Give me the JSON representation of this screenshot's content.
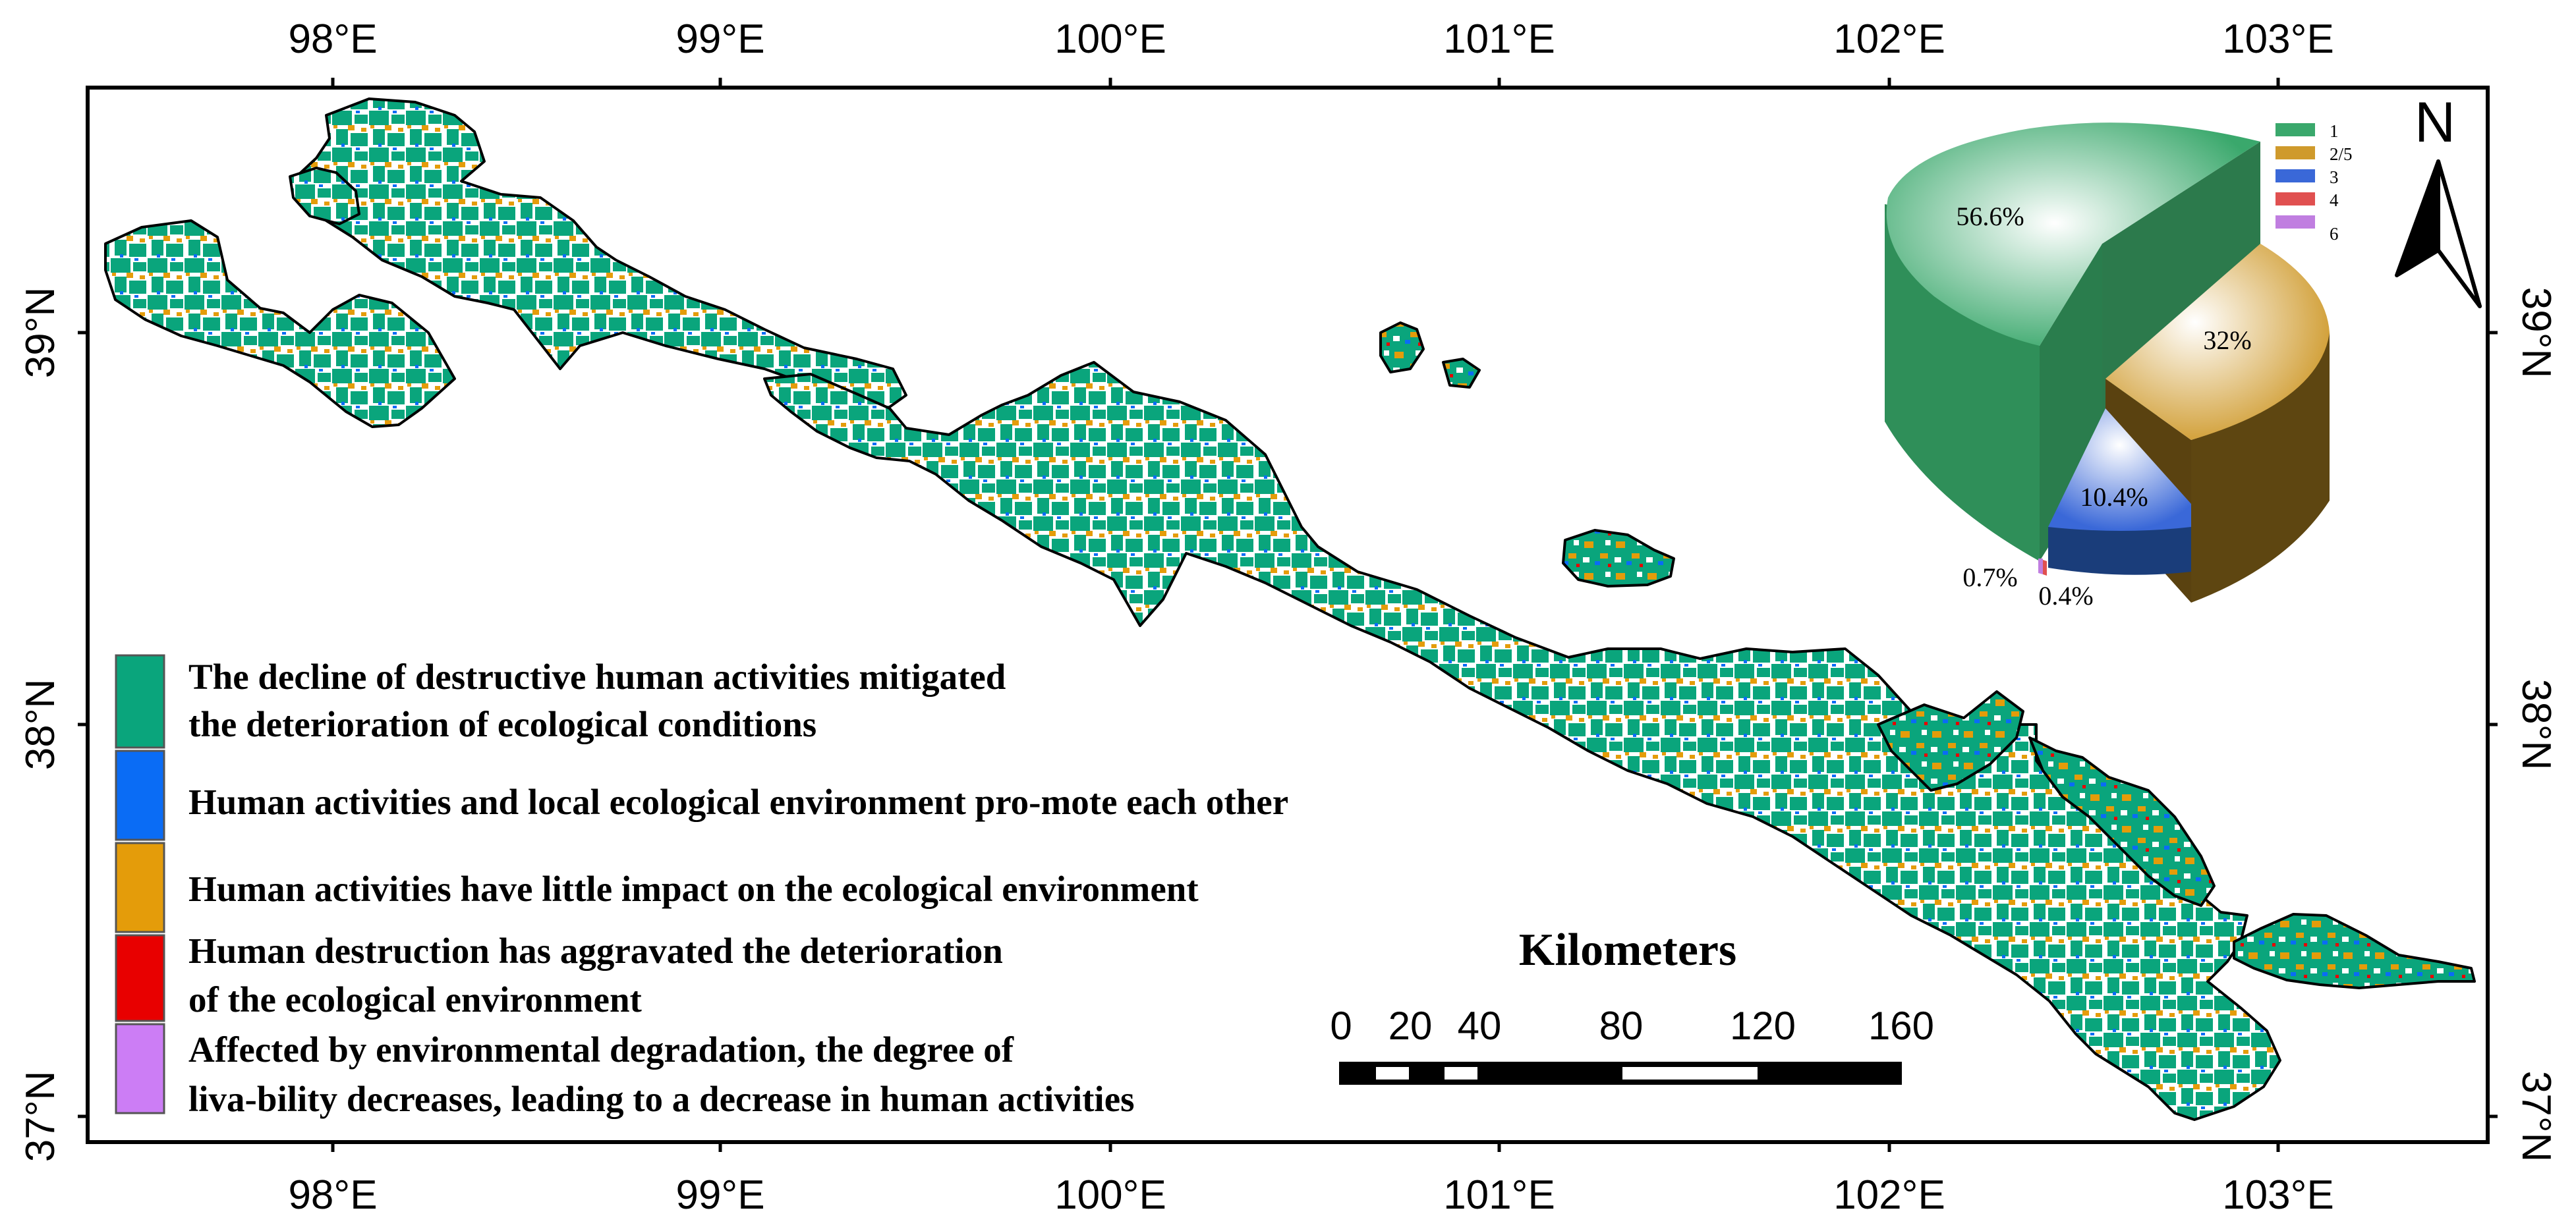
{
  "map": {
    "lon_labels": [
      "98°E",
      "99°E",
      "100°E",
      "101°E",
      "102°E",
      "103°E"
    ],
    "lat_labels": [
      "39°N",
      "38°N",
      "37°N"
    ]
  },
  "legend": {
    "items": [
      {
        "id": "1",
        "color": "#0aa57c",
        "lines": [
          "The decline of destructive human activities mitigated",
          "the deterioration of ecological conditions"
        ]
      },
      {
        "id": "3",
        "color": "#0a6cf5",
        "lines": [
          "Human activities and local ecological environment pro-mote each other"
        ]
      },
      {
        "id": "2/5",
        "color": "#e49c0a",
        "lines": [
          "Human activities have little impact on the ecological environment"
        ]
      },
      {
        "id": "4",
        "color": "#e80000",
        "lines": [
          "Human destruction has aggravated the deterioration",
          "of the ecological environment"
        ]
      },
      {
        "id": "6",
        "color": "#cc7df5",
        "lines": [
          "Affected by environmental degradation, the degree of",
          "liva-bility decreases, leading to a decrease in human activities"
        ]
      }
    ]
  },
  "pie": {
    "legend": [
      {
        "label": "1",
        "color": "#3aa86c"
      },
      {
        "label": "2/5",
        "color": "#cf9a2c"
      },
      {
        "label": "3",
        "color": "#3a68d8"
      },
      {
        "label": "4",
        "color": "#e05050"
      },
      {
        "label": "6",
        "color": "#c07ee0"
      }
    ],
    "slices": [
      {
        "label": "56.6%",
        "value": 56.6
      },
      {
        "label": "32%",
        "value": 32
      },
      {
        "label": "10.4%",
        "value": 10.4
      },
      {
        "label": "0.7%",
        "value": 0.7
      },
      {
        "label": "0.4%",
        "value": 0.4
      }
    ]
  },
  "scale_bar": {
    "title": "Kilometers",
    "ticks": [
      "0",
      "20",
      "40",
      "80",
      "120",
      "160"
    ]
  },
  "north_arrow": {
    "label": "N"
  }
}
